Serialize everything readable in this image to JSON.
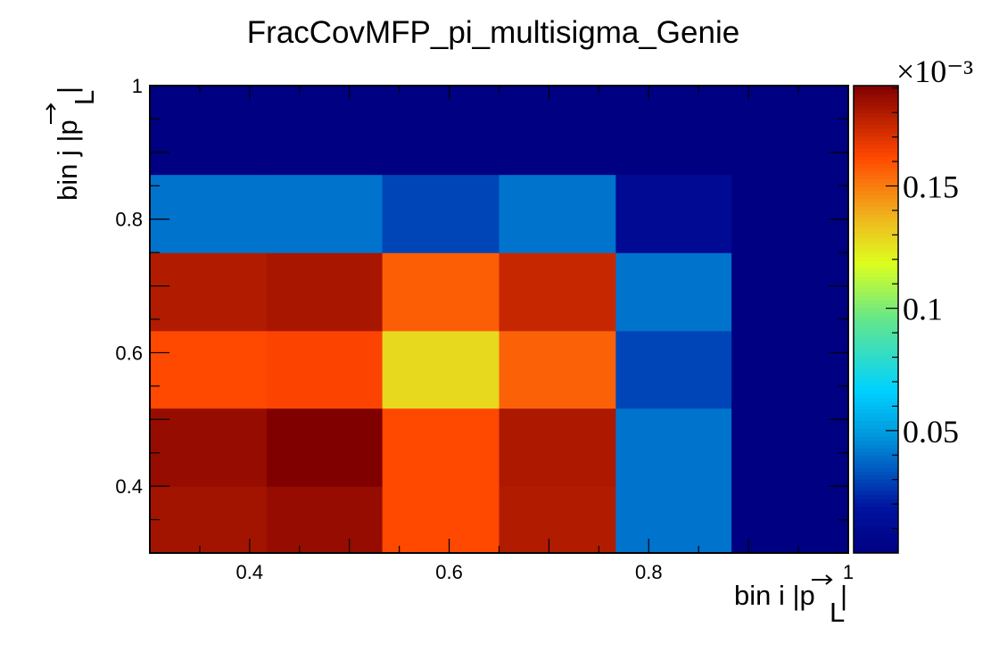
{
  "chart_data": {
    "type": "heatmap",
    "title": "FracCovMFP_pi_multisigma_Genie",
    "xlabel": "bin i |p_L|",
    "ylabel": "bin j |p_L|",
    "xlim": [
      0.3,
      1.0
    ],
    "ylim": [
      0.3,
      1.0
    ],
    "x_ticks": [
      "0.4",
      "0.6",
      "0.8",
      "1"
    ],
    "y_ticks": [
      "0.4",
      "0.6",
      "0.8",
      "1"
    ],
    "x_edges": [
      0.3,
      0.417,
      0.533,
      0.65,
      0.767,
      0.883,
      1.0
    ],
    "y_edges": [
      0.3,
      0.4,
      0.517,
      0.633,
      0.75,
      0.867,
      1.0
    ],
    "z": [
      [
        0.183,
        0.186,
        0.162,
        0.18,
        0.04,
        0.0
      ],
      [
        0.186,
        0.191,
        0.162,
        0.181,
        0.04,
        0.0
      ],
      [
        0.162,
        0.163,
        0.128,
        0.156,
        0.03,
        0.0
      ],
      [
        0.18,
        0.182,
        0.157,
        0.175,
        0.04,
        0.0
      ],
      [
        0.04,
        0.04,
        0.03,
        0.04,
        0.01,
        0.0
      ],
      [
        0.0,
        0.0,
        0.0,
        0.0,
        0.0,
        0.0
      ]
    ],
    "z_scale_label": "×10⁻³",
    "z_range": [
      0.0,
      0.191
    ],
    "z_ticks": [
      "0.05",
      "0.1",
      "0.15"
    ],
    "z_tick_values": [
      0.05,
      0.1,
      0.15
    ],
    "colormap": "jet",
    "grid": false
  }
}
